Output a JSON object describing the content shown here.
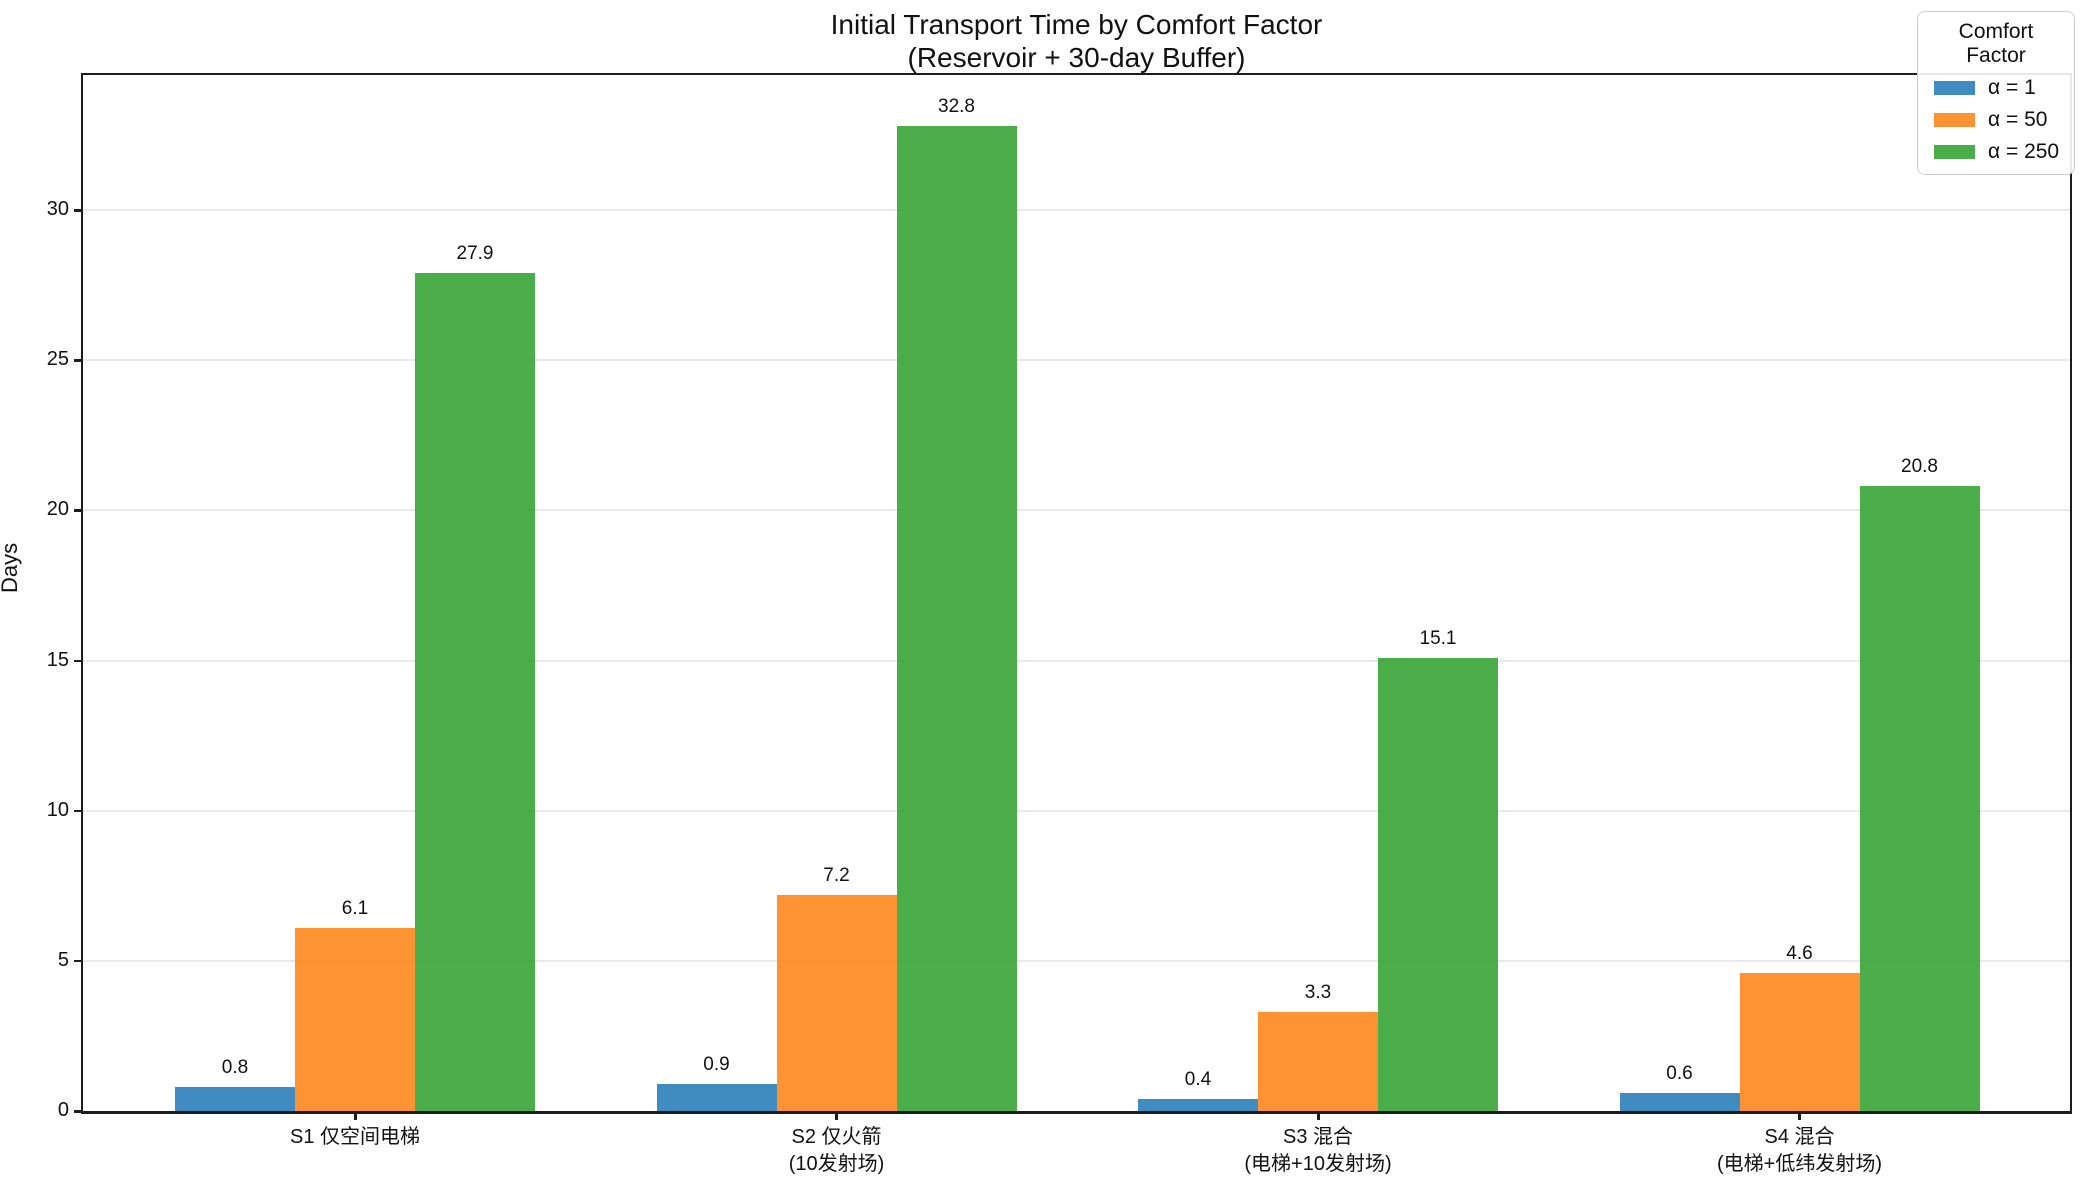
{
  "title": {
    "line1": "Initial Transport Time by Comfort Factor",
    "line2": "(Reservoir + 30-day Buffer)"
  },
  "y_axis_label": "Days",
  "legend": {
    "title": "Comfort Factor"
  },
  "colors": {
    "blue": "#1f77b4",
    "orange": "#ff7f0e",
    "green": "#2ca02c",
    "gridline": "#e9e9e9",
    "spine": "#1c1c1c"
  },
  "chart_data": {
    "type": "bar",
    "title": "Initial Transport Time by Comfort Factor (Reservoir + 30-day Buffer)",
    "ylabel": "Days",
    "categories": [
      [
        "S1 仅空间电梯"
      ],
      [
        "S2 仅火箭",
        "(10发射场)"
      ],
      [
        "S3 混合",
        "(电梯+10发射场)"
      ],
      [
        "S4 混合",
        "(电梯+低纬发射场)"
      ]
    ],
    "series": [
      {
        "name": "α = 1",
        "color": "#1f77b4",
        "values": [
          0.8,
          0.9,
          0.4,
          0.6
        ]
      },
      {
        "name": "α = 50",
        "color": "#ff7f0e",
        "values": [
          6.1,
          7.2,
          3.3,
          4.6
        ]
      },
      {
        "name": "α = 250",
        "color": "#2ca02c",
        "values": [
          27.9,
          32.8,
          15.1,
          20.8
        ]
      }
    ],
    "bar_alpha": 0.85,
    "value_labels": true,
    "yticks": [
      0,
      5,
      10,
      15,
      20,
      25,
      30
    ],
    "ylim": [
      0,
      34.5
    ],
    "grid": true,
    "grid_color": "#e9e9e9",
    "legend_title": "Comfort Factor",
    "legend_position": "upper right"
  }
}
